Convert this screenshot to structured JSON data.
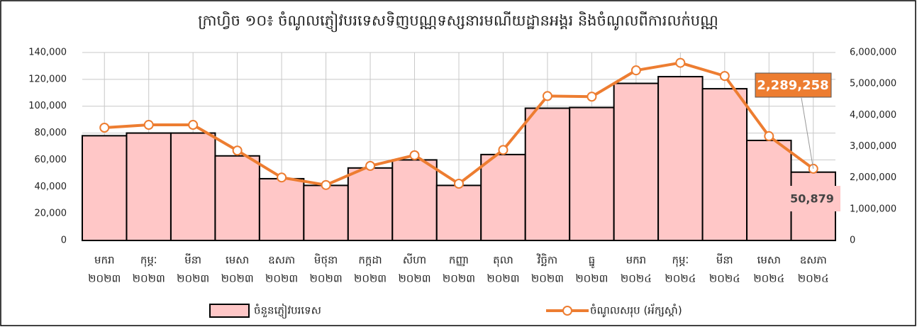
{
  "chart_data": {
    "type": "bar-line",
    "title": "ក្រាហ្វិច ១០៖ ចំណូលភ្ញៀវបរទេសទិញបណ្ណទស្សនារមណីយដ្ឋានអង្គរ និងចំណូលពីការលក់បណ្ណ",
    "categories": [
      [
        "មករា",
        "២០២៣"
      ],
      [
        "កុម្ភៈ",
        "២០២៣"
      ],
      [
        "មីនា",
        "២០២៣"
      ],
      [
        "មេសា",
        "២០២៣"
      ],
      [
        "ឧសភា",
        "២០២៣"
      ],
      [
        "មិថុនា",
        "២០២៣"
      ],
      [
        "កក្កដា",
        "២០២៣"
      ],
      [
        "សីហា",
        "២០២៣"
      ],
      [
        "កញ្ញា",
        "២០២៣"
      ],
      [
        "តុលា",
        "២០២៣"
      ],
      [
        "វិច្ឆិកា",
        "២០២៣"
      ],
      [
        "ធ្នូ",
        "២០២៣"
      ],
      [
        "មករា",
        "២០២៤"
      ],
      [
        "កុម្ភៈ",
        "២០២៤"
      ],
      [
        "មីនា",
        "២០២៤"
      ],
      [
        "មេសា",
        "២០២៤"
      ],
      [
        "ឧសភា",
        "២០២៤"
      ]
    ],
    "series": [
      {
        "name": "ចំនួនភ្ញៀវបរទេស",
        "type": "bar",
        "color": "#ffc7c7",
        "values": [
          78000,
          80000,
          80000,
          63000,
          46000,
          41000,
          54000,
          60000,
          41000,
          64000,
          98500,
          99000,
          117000,
          122000,
          113000,
          74500,
          50879
        ],
        "value_labels": [
          null,
          null,
          null,
          null,
          null,
          null,
          null,
          null,
          null,
          null,
          null,
          null,
          null,
          null,
          null,
          null,
          "50,879"
        ]
      },
      {
        "name": "ចំណូលសរុប (អ័ក្សស្តាំ)",
        "type": "line",
        "axis": "y2",
        "color": "#ed7d31",
        "values": [
          3600000,
          3690000,
          3690000,
          2870000,
          2010000,
          1770000,
          2380000,
          2720000,
          1810000,
          2890000,
          4610000,
          4590000,
          5430000,
          5670000,
          5250000,
          3330000,
          2289258
        ],
        "value_labels": [
          null,
          null,
          null,
          null,
          null,
          null,
          null,
          null,
          null,
          null,
          null,
          null,
          null,
          null,
          null,
          null,
          "2,289,258"
        ]
      }
    ],
    "ylim": [
      0,
      140000
    ],
    "yticks": [
      0,
      {
        "value": 20000,
        "label": "20,000"
      },
      {
        "value": 40000,
        "label": "40,000"
      },
      {
        "value": 60000,
        "label": "60,000"
      },
      {
        "value": 80000,
        "label": "80,000"
      },
      {
        "value": 100000,
        "label": "100,000"
      },
      {
        "value": 120000,
        "label": "120,000"
      },
      {
        "value": 140000,
        "label": "140,000"
      }
    ],
    "y2lim": [
      0,
      6000000
    ],
    "y2ticks": [
      0,
      {
        "value": 1000000,
        "label": "1,000,000"
      },
      {
        "value": 2000000,
        "label": "2,000,000"
      },
      {
        "value": 3000000,
        "label": "3,000,000"
      },
      {
        "value": 4000000,
        "label": "4,000,000"
      },
      {
        "value": 5000000,
        "label": "5,000,000"
      },
      {
        "value": 6000000,
        "label": "6,000,000"
      }
    ],
    "grid": true,
    "legend": "bottom"
  }
}
